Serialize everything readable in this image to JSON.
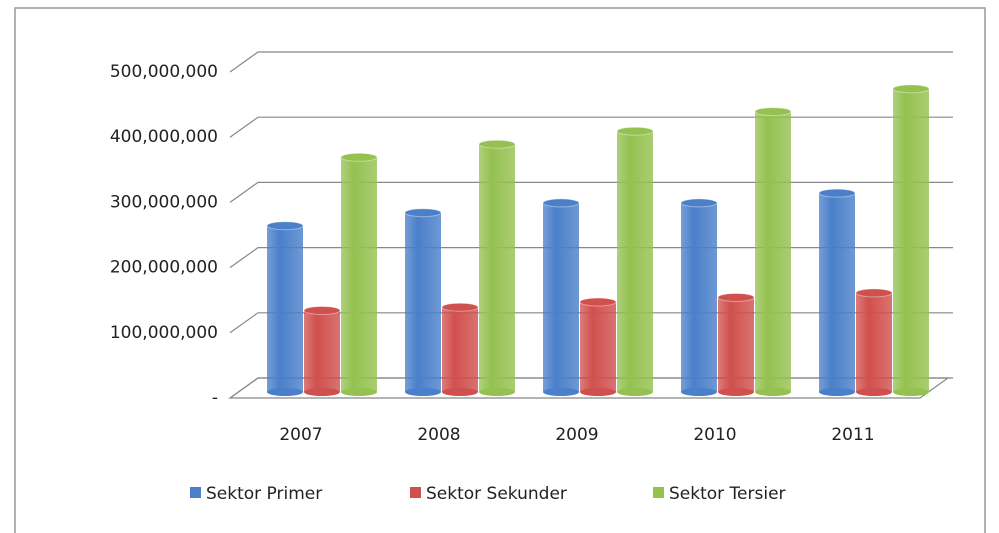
{
  "chart_data": {
    "type": "bar3d",
    "categories": [
      "2007",
      "2008",
      "2009",
      "2010",
      "2011"
    ],
    "series": [
      {
        "name": "Sektor Primer",
        "color": "#4a7fc9",
        "values": [
          255000000,
          275000000,
          290000000,
          290000000,
          305000000
        ]
      },
      {
        "name": "Sektor Sekunder",
        "color": "#d0504d",
        "values": [
          125000000,
          130000000,
          138000000,
          145000000,
          152000000
        ]
      },
      {
        "name": "Sektor Tersier",
        "color": "#94c150",
        "values": [
          360000000,
          380000000,
          400000000,
          430000000,
          465000000
        ]
      }
    ],
    "ylim": [
      0,
      500000000
    ],
    "yticks": [
      {
        "value": 0,
        "label": "-"
      },
      {
        "value": 100000000,
        "label": "100,000,000"
      },
      {
        "value": 200000000,
        "label": "200,000,000"
      },
      {
        "value": 300000000,
        "label": "300,000,000"
      },
      {
        "value": 400000000,
        "label": "400,000,000"
      },
      {
        "value": 500000000,
        "label": "500,000,000"
      }
    ],
    "grid": true,
    "legend": "bottom"
  }
}
